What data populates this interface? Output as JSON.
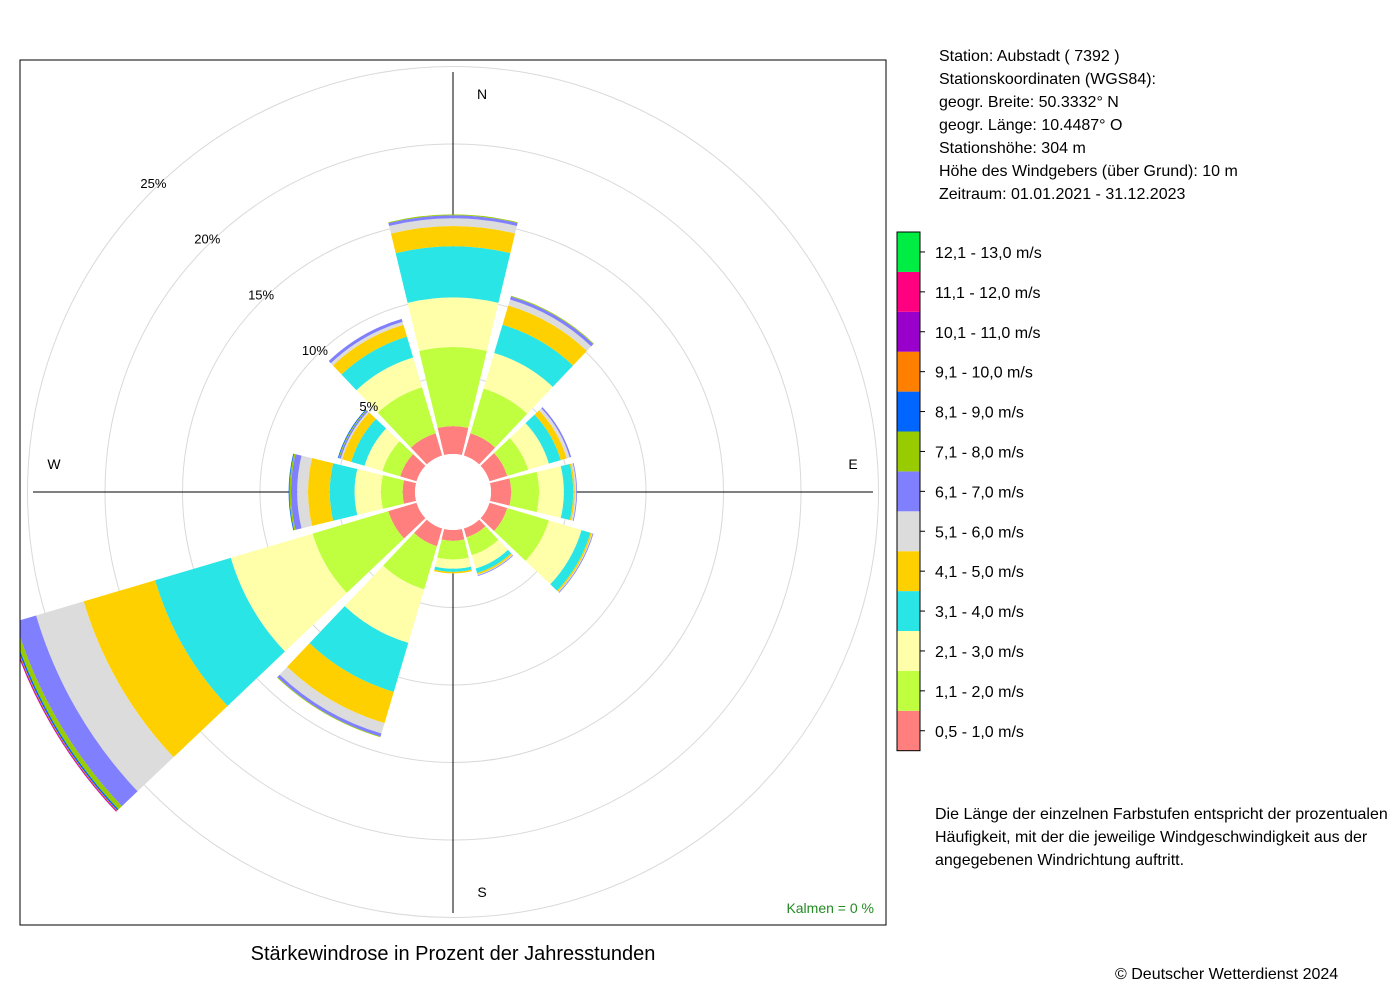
{
  "station": {
    "line1": "Station:  Aubstadt  ( 7392 )",
    "line2": "Stationskoordinaten (WGS84):",
    "line3": "geogr. Breite: 50.3332° N",
    "line4": "geogr. Länge: 10.4487° O",
    "line5": "Stationshöhe: 304 m",
    "line6": "Höhe des Windgebers (über Grund): 10 m",
    "line7": "Zeitraum: 01.01.2021 - 31.12.2023"
  },
  "note": {
    "line1": "Die Länge der einzelnen Farbstufen entspricht der prozentualen",
    "line2": "Häufigkeit, mit der die jeweilige Windgeschwindigkeit aus der",
    "line3": "angegebenen Windrichtung auftritt."
  },
  "copyright": "© Deutscher Wetterdienst  2024",
  "chart_data": {
    "type": "polar-stacked-bar",
    "title": "Stärkewindrose in Prozent der Jahresstunden",
    "calm_label": "Kalmen  =  0 %",
    "compass": {
      "n": "N",
      "e": "E",
      "s": "S",
      "w": "W"
    },
    "radial_ticks": [
      {
        "value": 5,
        "label": "5%"
      },
      {
        "value": 10,
        "label": "10%"
      },
      {
        "value": 15,
        "label": "15%"
      },
      {
        "value": 20,
        "label": "20%"
      },
      {
        "value": 25,
        "label": "25%"
      }
    ],
    "rmax": 25,
    "grid": true,
    "legend_position": "right",
    "direction_unit": "degrees clockwise from north",
    "bins": [
      {
        "label": "0,5 - 1,0 m/s",
        "color": "#FF7F7F"
      },
      {
        "label": "1,1 - 2,0 m/s",
        "color": "#BFFF3F"
      },
      {
        "label": "2,1 - 3,0 m/s",
        "color": "#FFFFAA"
      },
      {
        "label": "3,1 - 4,0 m/s",
        "color": "#2AE5E5"
      },
      {
        "label": "4,1 - 5,0 m/s",
        "color": "#FFD000"
      },
      {
        "label": "5,1 - 6,0 m/s",
        "color": "#DCDCDC"
      },
      {
        "label": "6,1 - 7,0 m/s",
        "color": "#8080FF"
      },
      {
        "label": "7,1 - 8,0 m/s",
        "color": "#99CC00"
      },
      {
        "label": "8,1 - 9,0 m/s",
        "color": "#0066FF"
      },
      {
        "label": "9,1 - 10,0 m/s",
        "color": "#FF8000"
      },
      {
        "label": "10,1 - 11,0 m/s",
        "color": "#9900CC"
      },
      {
        "label": "11,1 - 12,0 m/s",
        "color": "#FF0080"
      },
      {
        "label": "12,1 - 13,0 m/s",
        "color": "#00EE44"
      }
    ],
    "series": [
      {
        "direction": 0,
        "values": [
          1.8,
          5.1,
          3.2,
          3.3,
          1.3,
          0.5,
          0.2,
          0.05,
          0,
          0,
          0,
          0,
          0
        ]
      },
      {
        "direction": 30,
        "values": [
          1.5,
          3.0,
          2.4,
          1.9,
          1.3,
          0.4,
          0.2,
          0.05,
          0,
          0,
          0,
          0,
          0
        ]
      },
      {
        "direction": 60,
        "values": [
          1.2,
          1.4,
          1.4,
          0.8,
          0.4,
          0.2,
          0.1,
          0,
          0,
          0,
          0,
          0,
          0
        ]
      },
      {
        "direction": 90,
        "values": [
          1.3,
          1.8,
          1.6,
          0.6,
          0.1,
          0.1,
          0.05,
          0,
          0,
          0,
          0,
          0,
          0
        ]
      },
      {
        "direction": 120,
        "values": [
          1.2,
          2.8,
          2.2,
          0.6,
          0.1,
          0.05,
          0.05,
          0,
          0,
          0,
          0,
          0,
          0
        ]
      },
      {
        "direction": 150,
        "values": [
          0.6,
          1.2,
          0.9,
          0.3,
          0.1,
          0.05,
          0.05,
          0,
          0,
          0,
          0,
          0,
          0
        ]
      },
      {
        "direction": 180,
        "values": [
          0.7,
          1.2,
          0.6,
          0.2,
          0.1,
          0,
          0,
          0,
          0,
          0,
          0,
          0,
          0
        ]
      },
      {
        "direction": 210,
        "values": [
          1.2,
          2.9,
          3.6,
          3.3,
          2.1,
          0.7,
          0.2,
          0.05,
          0,
          0,
          0,
          0,
          0
        ]
      },
      {
        "direction": 240,
        "values": [
          1.9,
          5.1,
          5.5,
          5.1,
          4.8,
          3.2,
          1.4,
          0.3,
          0.1,
          0.05,
          0.05,
          0.02,
          0
        ]
      },
      {
        "direction": 270,
        "values": [
          0.8,
          1.4,
          1.7,
          1.6,
          1.4,
          0.7,
          0.4,
          0.1,
          0.05,
          0,
          0,
          0,
          0
        ]
      },
      {
        "direction": 300,
        "values": [
          1.1,
          1.2,
          1.2,
          0.9,
          0.6,
          0.1,
          0.1,
          0.05,
          0.05,
          0,
          0,
          0,
          0
        ]
      },
      {
        "direction": 330,
        "values": [
          1.5,
          3.1,
          2.0,
          1.4,
          0.8,
          0.2,
          0.2,
          0,
          0,
          0,
          0,
          0,
          0
        ]
      }
    ]
  }
}
